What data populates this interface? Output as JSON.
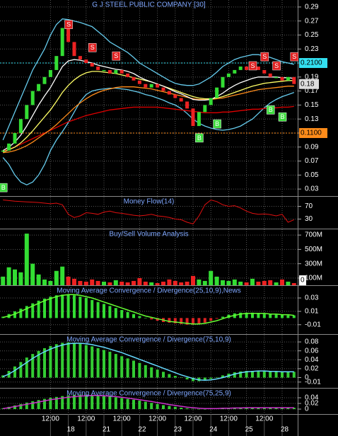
{
  "chart_data": [
    {
      "type": "price",
      "title": "G J STEEL PUBLIC COMPANY [30]",
      "values": [
        0.085,
        0.095,
        0.11,
        0.13,
        0.15,
        0.17,
        0.18,
        0.19,
        0.2,
        0.22,
        0.26,
        0.24,
        0.22,
        0.215,
        0.21,
        0.205,
        0.2,
        0.2,
        0.195,
        0.2,
        0.195,
        0.19,
        0.185,
        0.18,
        0.175,
        0.18,
        0.175,
        0.17,
        0.165,
        0.16,
        0.155,
        0.145,
        0.12,
        0.14,
        0.15,
        0.16,
        0.175,
        0.19,
        0.195,
        0.2,
        0.205,
        0.2,
        0.205,
        0.2,
        0.195,
        0.19,
        0.19,
        0.185,
        0.19,
        0.18
      ],
      "up_color": "#33dd33",
      "down_color": "#ee2222",
      "overlays": [
        {
          "color": "#66ccee",
          "values": [
            0.1,
            0.12,
            0.14,
            0.16,
            0.18,
            0.2,
            0.215,
            0.23,
            0.25,
            0.265,
            0.273,
            0.272,
            0.27,
            0.268,
            0.265,
            0.262,
            0.255,
            0.248,
            0.24,
            0.235,
            0.23,
            0.225,
            0.218,
            0.21,
            0.205,
            0.2,
            0.195,
            0.19,
            0.185,
            0.181,
            0.179,
            0.178,
            0.178,
            0.18,
            0.185,
            0.19,
            0.197,
            0.205,
            0.21,
            0.215,
            0.218,
            0.22,
            0.222,
            0.222,
            0.22,
            0.218,
            0.215,
            0.212,
            0.21,
            0.208
          ]
        },
        {
          "color": "#66ccee",
          "values": [
            0.075,
            0.065,
            0.05,
            0.04,
            0.036,
            0.04,
            0.05,
            0.065,
            0.085,
            0.1,
            0.112,
            0.125,
            0.14,
            0.155,
            0.165,
            0.17,
            0.172,
            0.173,
            0.174,
            0.174,
            0.173,
            0.172,
            0.17,
            0.168,
            0.165,
            0.163,
            0.16,
            0.157,
            0.153,
            0.15,
            0.145,
            0.138,
            0.13,
            0.124,
            0.12,
            0.117,
            0.115,
            0.114,
            0.115,
            0.117,
            0.12,
            0.125,
            0.13,
            0.138,
            0.146,
            0.153,
            0.158,
            0.162,
            0.165,
            0.168
          ]
        },
        {
          "color": "#e00000",
          "values": [
            0.084,
            0.087,
            0.09,
            0.094,
            0.098,
            0.102,
            0.106,
            0.11,
            0.114,
            0.118,
            0.122,
            0.126,
            0.129,
            0.132,
            0.135,
            0.137,
            0.139,
            0.141,
            0.143,
            0.144,
            0.145,
            0.146,
            0.147,
            0.147,
            0.147,
            0.147,
            0.147,
            0.146,
            0.145,
            0.144,
            0.143,
            0.142,
            0.141,
            0.14,
            0.139,
            0.139,
            0.139,
            0.14,
            0.14,
            0.141,
            0.142,
            0.143,
            0.144,
            0.144,
            0.145,
            0.146,
            0.146,
            0.147,
            0.147,
            0.148
          ]
        },
        {
          "color": "#ff8c1a",
          "values": [
            0.082,
            0.083,
            0.085,
            0.088,
            0.092,
            0.097,
            0.103,
            0.109,
            0.115,
            0.122,
            0.13,
            0.138,
            0.146,
            0.153,
            0.159,
            0.164,
            0.168,
            0.171,
            0.173,
            0.175,
            0.176,
            0.176,
            0.176,
            0.175,
            0.174,
            0.173,
            0.171,
            0.169,
            0.167,
            0.165,
            0.163,
            0.161,
            0.159,
            0.158,
            0.158,
            0.158,
            0.159,
            0.16,
            0.162,
            0.164,
            0.166,
            0.168,
            0.17,
            0.172,
            0.173,
            0.174,
            0.175,
            0.176,
            0.177,
            0.177
          ]
        },
        {
          "color": "#ffff66",
          "values": [
            0.083,
            0.086,
            0.09,
            0.096,
            0.104,
            0.113,
            0.123,
            0.133,
            0.143,
            0.155,
            0.168,
            0.178,
            0.186,
            0.192,
            0.196,
            0.198,
            0.198,
            0.197,
            0.196,
            0.195,
            0.193,
            0.191,
            0.189,
            0.187,
            0.185,
            0.183,
            0.18,
            0.177,
            0.174,
            0.171,
            0.168,
            0.165,
            0.162,
            0.16,
            0.159,
            0.159,
            0.16,
            0.162,
            0.165,
            0.168,
            0.171,
            0.174,
            0.177,
            0.179,
            0.181,
            0.182,
            0.183,
            0.184,
            0.185,
            0.185
          ]
        },
        {
          "color": "#ffffff",
          "values": [
            0.085,
            0.09,
            0.097,
            0.107,
            0.12,
            0.135,
            0.15,
            0.163,
            0.175,
            0.19,
            0.205,
            0.213,
            0.215,
            0.214,
            0.212,
            0.21,
            0.207,
            0.205,
            0.203,
            0.201,
            0.2,
            0.198,
            0.195,
            0.19,
            0.186,
            0.183,
            0.18,
            0.177,
            0.173,
            0.169,
            0.166,
            0.162,
            0.158,
            0.157,
            0.157,
            0.158,
            0.162,
            0.167,
            0.173,
            0.178,
            0.182,
            0.185,
            0.188,
            0.19,
            0.19,
            0.19,
            0.19,
            0.189,
            0.189,
            0.188
          ]
        }
      ],
      "levels": [
        {
          "value": 0.21,
          "label": "0.2100",
          "color": "#33e0f0"
        },
        {
          "value": 0.11,
          "label": "0.1100",
          "color": "#ff8c1a"
        }
      ],
      "last_value": 0.18,
      "signals": {
        "buy_label": "B",
        "sell_label": "S",
        "buy_color": "#3ddc3d",
        "sell_color": "#e02020",
        "buy": [
          0.032,
          null,
          null,
          null,
          null,
          null,
          null,
          null,
          null,
          null,
          null,
          null,
          null,
          null,
          null,
          null,
          null,
          null,
          null,
          null,
          null,
          null,
          null,
          null,
          null,
          null,
          null,
          null,
          null,
          null,
          null,
          null,
          null,
          0.103,
          null,
          null,
          0.123,
          null,
          null,
          null,
          null,
          null,
          null,
          null,
          null,
          0.143,
          null,
          0.133,
          null,
          null
        ],
        "sell": [
          null,
          null,
          null,
          null,
          null,
          null,
          null,
          null,
          null,
          null,
          null,
          0.265,
          null,
          null,
          null,
          0.232,
          null,
          null,
          null,
          0.22,
          null,
          null,
          null,
          null,
          null,
          null,
          null,
          null,
          null,
          null,
          null,
          null,
          null,
          null,
          null,
          null,
          null,
          null,
          null,
          null,
          null,
          null,
          0.206,
          null,
          0.219,
          null,
          0.206,
          null,
          null,
          0.219
        ]
      },
      "ylim": [
        0.02,
        0.3
      ],
      "yticks": [
        0.29,
        0.27,
        0.25,
        0.23,
        0.21,
        0.19,
        0.17,
        0.15,
        0.13,
        0.11,
        0.09,
        0.07,
        0.05,
        0.03
      ]
    },
    {
      "type": "line",
      "title": "Money Flow(14)",
      "color": "#e01010",
      "values": [
        90,
        88,
        86,
        85,
        84,
        83,
        82,
        80,
        78,
        80,
        75,
        45,
        35,
        40,
        50,
        48,
        45,
        52,
        55,
        50,
        48,
        45,
        42,
        40,
        42,
        45,
        40,
        38,
        35,
        30,
        28,
        20,
        15,
        40,
        75,
        90,
        85,
        75,
        70,
        72,
        65,
        55,
        48,
        45,
        46,
        44,
        40,
        45,
        20,
        28
      ],
      "ylim": [
        0,
        100
      ],
      "yticks": [
        70,
        30
      ]
    },
    {
      "type": "bar",
      "title": "Buy/Sell Volume Analysis",
      "up_color": "#33dd33",
      "down_color": "#ee2222",
      "values": [
        120,
        250,
        220,
        180,
        720,
        300,
        150,
        80,
        60,
        200,
        260,
        120,
        90,
        60,
        50,
        80,
        60,
        50,
        40,
        70,
        50,
        40,
        60,
        100,
        50,
        40,
        30,
        50,
        80,
        60,
        40,
        50,
        130,
        80,
        60,
        200,
        120,
        70,
        60,
        80,
        50,
        40,
        90,
        50,
        60,
        70,
        40,
        80,
        50,
        30
      ],
      "ylim": [
        0,
        780
      ],
      "yticks": [
        {
          "value": 700,
          "label": "700M"
        },
        {
          "value": 500,
          "label": "500M"
        },
        {
          "value": 300,
          "label": "300M"
        },
        {
          "value": 100,
          "label": "100M"
        }
      ],
      "last_value": 0
    },
    {
      "type": "macd",
      "title": "Moving Average Convergence / Divergence(25,10,9),News",
      "histogram": {
        "color": "#33dd33",
        "negative_color": "#dd2222",
        "values": [
          0.002,
          0.006,
          0.01,
          0.014,
          0.018,
          0.022,
          0.026,
          0.029,
          0.032,
          0.034,
          0.035,
          0.035,
          0.034,
          0.032,
          0.03,
          0.027,
          0.024,
          0.021,
          0.018,
          0.015,
          0.012,
          0.009,
          0.006,
          0.003,
          0.0,
          -0.002,
          -0.004,
          -0.006,
          -0.007,
          -0.008,
          -0.009,
          -0.01,
          -0.01,
          -0.009,
          -0.007,
          -0.004,
          -0.001,
          0.002,
          0.005,
          0.007,
          0.008,
          0.008,
          0.008,
          0.007,
          0.006,
          0.006,
          0.005,
          0.005,
          0.004,
          0.004
        ]
      },
      "line": {
        "color": "#66ff33",
        "values": [
          0.001,
          0.003,
          0.006,
          0.01,
          0.014,
          0.018,
          0.022,
          0.026,
          0.029,
          0.032,
          0.034,
          0.035,
          0.035,
          0.034,
          0.032,
          0.03,
          0.027,
          0.024,
          0.021,
          0.018,
          0.015,
          0.012,
          0.009,
          0.006,
          0.003,
          0.001,
          -0.001,
          -0.003,
          -0.005,
          -0.006,
          -0.007,
          -0.008,
          -0.009,
          -0.009,
          -0.008,
          -0.006,
          -0.004,
          -0.001,
          0.002,
          0.004,
          0.006,
          0.007,
          0.007,
          0.007,
          0.007,
          0.006,
          0.006,
          0.005,
          0.005,
          0.004
        ]
      },
      "ylim": [
        -0.024,
        0.048
      ],
      "yticks": [
        0.03,
        0.01,
        -0.01
      ]
    },
    {
      "type": "macd",
      "title": "Moving Average Convergence / Divergence(75,10,9)",
      "histogram": {
        "color": "#33cc33",
        "negative_color": "#33cc33",
        "values": [
          0.005,
          0.015,
          0.025,
          0.035,
          0.045,
          0.053,
          0.06,
          0.066,
          0.071,
          0.075,
          0.078,
          0.079,
          0.078,
          0.076,
          0.073,
          0.07,
          0.066,
          0.062,
          0.058,
          0.053,
          0.048,
          0.043,
          0.038,
          0.033,
          0.028,
          0.023,
          0.018,
          0.013,
          0.008,
          0.004,
          0.0,
          -0.004,
          -0.008,
          -0.008,
          -0.006,
          -0.003,
          0.001,
          0.005,
          0.009,
          0.012,
          0.014,
          0.015,
          0.015,
          0.015,
          0.014,
          0.014,
          0.013,
          0.013,
          0.013,
          0.013
        ]
      },
      "line": {
        "color": "#66d9ff",
        "values": [
          0.002,
          0.008,
          0.016,
          0.025,
          0.034,
          0.043,
          0.051,
          0.058,
          0.064,
          0.069,
          0.073,
          0.076,
          0.077,
          0.077,
          0.076,
          0.074,
          0.071,
          0.068,
          0.064,
          0.06,
          0.056,
          0.051,
          0.046,
          0.041,
          0.036,
          0.031,
          0.026,
          0.021,
          0.016,
          0.011,
          0.006,
          0.002,
          -0.002,
          -0.005,
          -0.006,
          -0.005,
          -0.003,
          0.0,
          0.004,
          0.008,
          0.011,
          0.013,
          0.014,
          0.015,
          0.015,
          0.014,
          0.014,
          0.013,
          0.013,
          0.013
        ]
      },
      "ylim": [
        -0.023,
        0.096
      ],
      "yticks": [
        0.08,
        0.06,
        0.04,
        0.02,
        0.0,
        -0.01
      ]
    },
    {
      "type": "macd",
      "title": "Moving Average Convergence / Divergence(75,25,9)",
      "histogram": {
        "color": "#33cc33",
        "negative_color": "#33cc33",
        "values": [
          0.003,
          0.008,
          0.013,
          0.018,
          0.023,
          0.028,
          0.032,
          0.036,
          0.04,
          0.043,
          0.046,
          0.048,
          0.05,
          0.051,
          0.051,
          0.05,
          0.049,
          0.047,
          0.045,
          0.042,
          0.039,
          0.036,
          0.033,
          0.03,
          0.026,
          0.022,
          0.018,
          0.014,
          0.011,
          0.008,
          0.005,
          0.003,
          0.001,
          0.0,
          0.0,
          0.001,
          0.002,
          0.003,
          0.004,
          0.005,
          0.006,
          0.006,
          0.006,
          0.006,
          0.006,
          0.006,
          0.006,
          0.005,
          0.005,
          0.005
        ]
      },
      "line": {
        "color": "#cc33cc",
        "values": [
          0.002,
          0.005,
          0.009,
          0.013,
          0.017,
          0.021,
          0.025,
          0.029,
          0.033,
          0.036,
          0.039,
          0.042,
          0.044,
          0.046,
          0.047,
          0.048,
          0.048,
          0.047,
          0.046,
          0.044,
          0.042,
          0.039,
          0.036,
          0.033,
          0.03,
          0.027,
          0.023,
          0.02,
          0.016,
          0.013,
          0.01,
          0.007,
          0.005,
          0.003,
          0.002,
          0.002,
          0.002,
          0.003,
          0.003,
          0.004,
          0.004,
          0.005,
          0.005,
          0.005,
          0.005,
          0.005,
          0.005,
          0.005,
          0.005,
          0.005
        ]
      },
      "ylim": [
        -0.0175,
        0.0725
      ],
      "yticks": [
        0.04,
        0.02,
        0.0
      ],
      "categories": [
        null,
        null,
        null,
        null,
        null,
        null,
        null,
        null,
        "12:00",
        null,
        null,
        "18",
        null,
        null,
        "12:00",
        null,
        null,
        "21",
        null,
        null,
        "12:00",
        null,
        null,
        "22",
        null,
        null,
        "12:00",
        null,
        null,
        "23",
        null,
        null,
        "12:00",
        null,
        null,
        "24",
        null,
        null,
        "12:00",
        null,
        null,
        "25",
        null,
        null,
        "12:00",
        null,
        null,
        "28",
        null,
        null
      ]
    }
  ]
}
